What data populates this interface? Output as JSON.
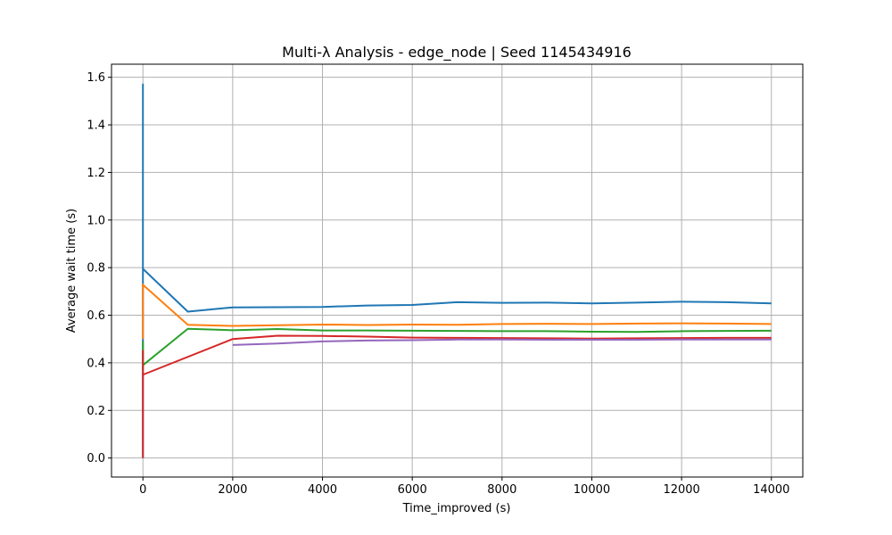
{
  "chart_data": {
    "type": "line",
    "title": "Multi-λ Analysis - edge_node | Seed 1145434916",
    "xlabel": "Time_improved (s)",
    "ylabel": "Average wait time (s)",
    "xlim": [
      -700,
      14700
    ],
    "ylim": [
      -0.08,
      1.655
    ],
    "xticks": [
      0,
      2000,
      4000,
      6000,
      8000,
      10000,
      12000,
      14000
    ],
    "yticks": [
      0.0,
      0.2,
      0.4,
      0.6,
      0.8,
      1.0,
      1.2,
      1.4,
      1.6
    ],
    "xtick_labels": [
      "0",
      "2000",
      "4000",
      "6000",
      "8000",
      "10000",
      "12000",
      "14000"
    ],
    "ytick_labels": [
      "0.0",
      "0.2",
      "0.4",
      "0.6",
      "0.8",
      "1.0",
      "1.2",
      "1.4",
      "1.6"
    ],
    "grid": true,
    "series": [
      {
        "color": "#1f77b4",
        "x": [
          0,
          0,
          0,
          0,
          0,
          1000,
          2000,
          3000,
          4000,
          5000,
          6000,
          7000,
          8000,
          9000,
          10000,
          11000,
          12000,
          13000,
          14000
        ],
        "y": [
          0.0,
          1.57,
          0.9,
          1.2,
          0.795,
          0.615,
          0.633,
          0.634,
          0.635,
          0.641,
          0.643,
          0.655,
          0.652,
          0.653,
          0.65,
          0.653,
          0.657,
          0.655,
          0.65
        ]
      },
      {
        "color": "#ff7f0e",
        "x": [
          0,
          0,
          0,
          1000,
          2000,
          3000,
          4000,
          5000,
          6000,
          7000,
          8000,
          9000,
          10000,
          11000,
          12000,
          13000,
          14000
        ],
        "y": [
          0.5,
          0.73,
          0.728,
          0.56,
          0.555,
          0.558,
          0.561,
          0.559,
          0.561,
          0.56,
          0.563,
          0.564,
          0.563,
          0.565,
          0.566,
          0.565,
          0.563
        ]
      },
      {
        "color": "#2ca02c",
        "x": [
          0,
          0,
          0,
          1000,
          2000,
          3000,
          4000,
          5000,
          6000,
          7000,
          8000,
          9000,
          10000,
          11000,
          12000,
          13000,
          14000
        ],
        "y": [
          0.49,
          0.37,
          0.39,
          0.543,
          0.537,
          0.542,
          0.536,
          0.536,
          0.535,
          0.534,
          0.533,
          0.533,
          0.531,
          0.53,
          0.533,
          0.534,
          0.535
        ]
      },
      {
        "color": "#d62728",
        "x": [
          0,
          0,
          0,
          2000,
          3000,
          4000,
          5000,
          6000,
          7000,
          8000,
          9000,
          10000,
          11000,
          12000,
          13000,
          14000
        ],
        "y": [
          0.0,
          0.45,
          0.35,
          0.5,
          0.514,
          0.513,
          0.51,
          0.506,
          0.505,
          0.504,
          0.503,
          0.502,
          0.503,
          0.504,
          0.505,
          0.505
        ]
      },
      {
        "color": "#9467bd",
        "x": [
          2000,
          3000,
          4000,
          5000,
          6000,
          7000,
          8000,
          9000,
          10000,
          11000,
          12000,
          13000,
          14000
        ],
        "y": [
          0.475,
          0.481,
          0.49,
          0.494,
          0.495,
          0.498,
          0.498,
          0.497,
          0.497,
          0.497,
          0.498,
          0.498,
          0.498
        ]
      }
    ]
  }
}
